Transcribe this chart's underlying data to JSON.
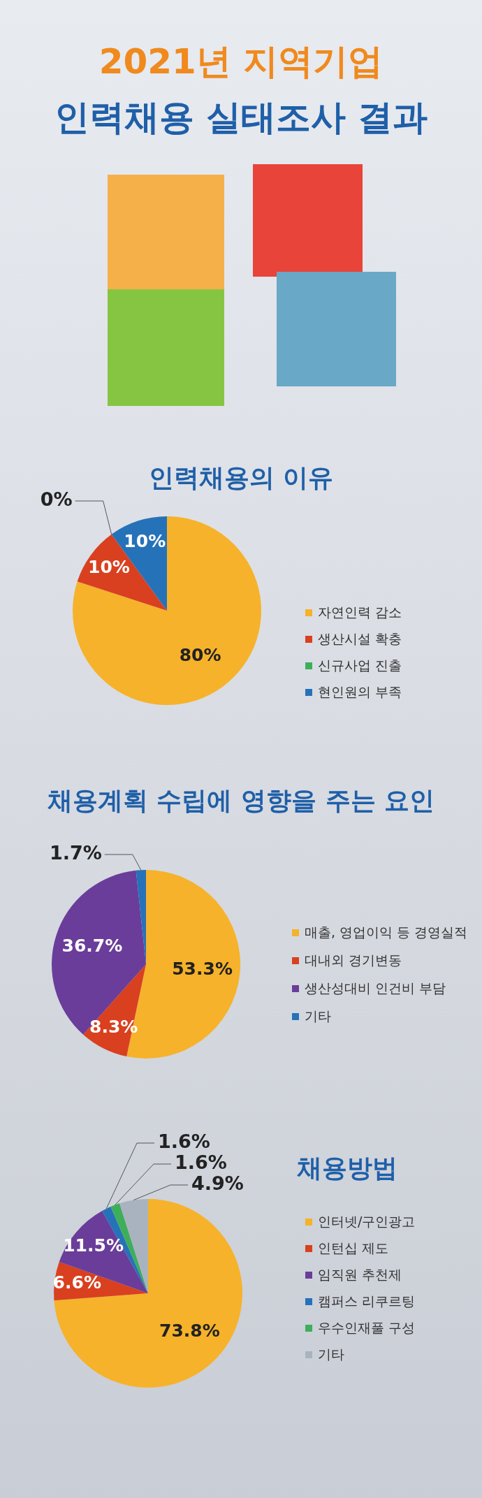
{
  "chart_data": [
    {
      "type": "other",
      "title": "2021년 지역기업",
      "subtitle": "인력채용 실태조사 결과"
    },
    {
      "type": "pie",
      "title": "인력채용의 이유",
      "categories": [
        "자연인력  감소",
        "생산시설 확충",
        "신규사업 진출",
        "현인원의 부족"
      ],
      "values": [
        80,
        10,
        0,
        10
      ],
      "colors": [
        "#f6b22a",
        "#d9401f",
        "#3fae5a",
        "#2672b9"
      ],
      "value_labels": [
        "80%",
        "10%",
        "0%",
        "10%"
      ],
      "legend": "right"
    },
    {
      "type": "pie",
      "title": "채용계획  수립에  영향을  주는 요인",
      "categories": [
        "매출, 영업이익 등 경영실적",
        "대내외 경기변동",
        "생산성대비 인건비 부담",
        "기타"
      ],
      "values": [
        53.3,
        8.3,
        36.7,
        1.7
      ],
      "colors": [
        "#f6b22a",
        "#d9401f",
        "#6a3d9a",
        "#2672b9"
      ],
      "value_labels": [
        "53.3%",
        "8.3%",
        "36.7%",
        "1.7%"
      ],
      "legend": "right"
    },
    {
      "type": "pie",
      "title": "채용방법",
      "categories": [
        "인터넷/구인광고",
        "인턴십 제도",
        "임직원 추천제",
        "캠퍼스 리쿠르팅",
        "우수인재풀 구성",
        "기타"
      ],
      "values": [
        73.8,
        6.6,
        11.5,
        1.6,
        1.6,
        4.9
      ],
      "colors": [
        "#f6b22a",
        "#d9401f",
        "#6a3d9a",
        "#2672b9",
        "#3fae5a",
        "#a9b3c0"
      ],
      "value_labels": [
        "73.8%",
        "6.6%",
        "11.5%",
        "1.6%",
        "1.6%",
        "4.9%"
      ],
      "legend": "right"
    }
  ]
}
